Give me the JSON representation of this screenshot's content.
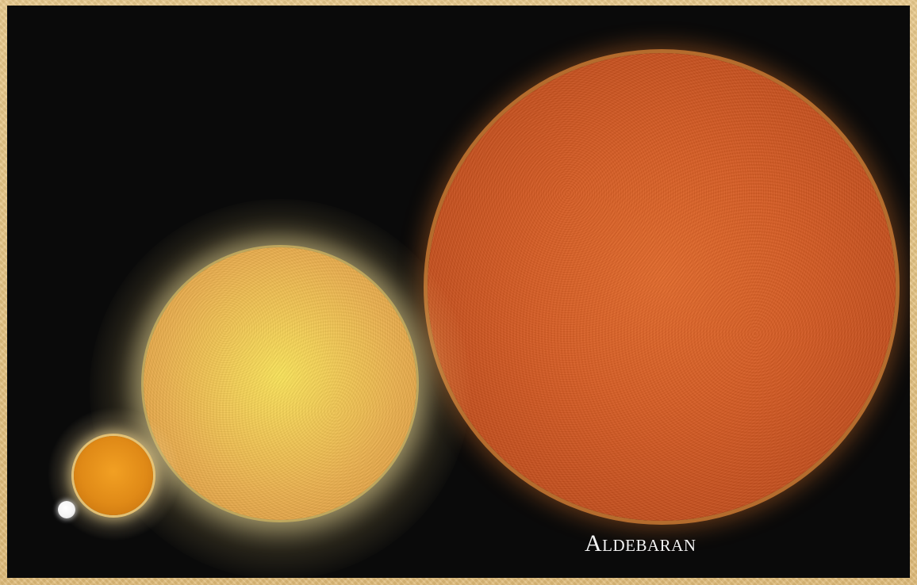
{
  "caption": "Aldebaran",
  "colors": {
    "frame": "#e8c98b",
    "space": "#0a0a0a",
    "white_star": "#ffffff",
    "orange_star": "#e08a17",
    "yellow_star": "#f0c955",
    "aldebaran": "#d55d25",
    "caption_text": "#f3f3f3"
  }
}
